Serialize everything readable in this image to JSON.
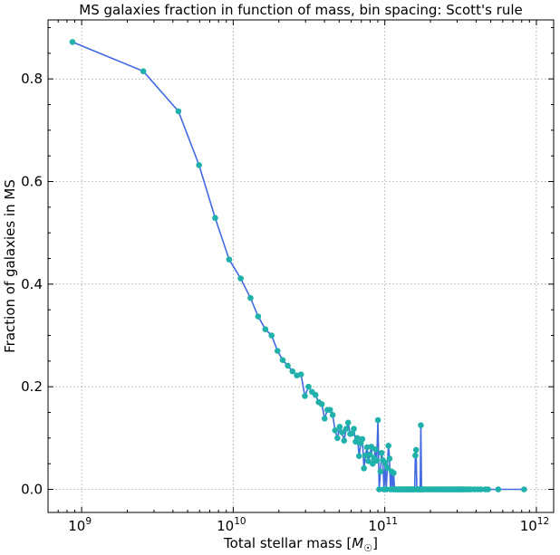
{
  "chart_data": {
    "type": "line",
    "title": "MS galaxies fraction in function of mass, bin spacing: Scott's rule",
    "xlabel": "Total stellar mass [M☉]",
    "ylabel": "Fraction of galaxies in MS",
    "xscale": "log",
    "xlim": [
      600000000.0,
      1300000000000.0
    ],
    "ylim": [
      -0.045,
      0.915
    ],
    "yticks": [
      0.0,
      0.2,
      0.4,
      0.6,
      0.8
    ],
    "ytick_labels": [
      "0.0",
      "0.2",
      "0.4",
      "0.6",
      "0.8"
    ],
    "xticks": [
      1000000000.0,
      10000000000.0,
      100000000000.0,
      1000000000000.0
    ],
    "xtick_labels": [
      {
        "base": "10",
        "exp": "9"
      },
      {
        "base": "10",
        "exp": "10"
      },
      {
        "base": "10",
        "exp": "11"
      },
      {
        "base": "10",
        "exp": "12"
      }
    ],
    "grid": true,
    "line_color": "#4169e1",
    "marker_color": "#20b2aa",
    "series": [
      {
        "x": [
          870000000.0,
          2550000000.0,
          4350000000.0,
          5950000000.0,
          7600000000.0,
          9400000000.0,
          11200000000.0,
          13000000000.0,
          14600000000.0,
          16300000000.0,
          17900000000.0,
          19600000000.0,
          21200000000.0,
          22900000000.0,
          24600000000.0,
          26300000000.0,
          28000000000.0,
          29700000000.0,
          31400000000.0,
          33100000000.0,
          34900000000.0,
          36600000000.0,
          38400000000.0,
          40100000000.0,
          41800000000.0,
          43500000000.0,
          45300000000.0,
          47000000000.0,
          48700000000.0,
          50400000000.0,
          52200000000.0,
          53900000000.0,
          55600000000.0,
          57300000000.0,
          59100000000.0,
          60800000000.0,
          62500000000.0,
          64200000000.0,
          66000000000.0,
          67700000000.0,
          69400000000.0,
          71100000000.0,
          72900000000.0,
          74600000000.0,
          76300000000.0,
          78000000000.0,
          79800000000.0,
          81500000000.0,
          83200000000.0,
          84900000000.0,
          86700000000.0,
          88400000000.0,
          90100000000.0,
          91800000000.0,
          93600000000.0,
          95300000000.0,
          97000000000.0,
          98700000000.0,
          100500000000.0,
          102200000000.0,
          103900000000.0,
          105700000000.0,
          107400000000.0,
          109100000000.0,
          110800000000.0,
          112600000000.0,
          114300000000.0,
          116000000000.0,
          117700000000.0,
          119500000000.0,
          121200000000.0,
          122900000000.0,
          124600000000.0,
          126400000000.0,
          128100000000.0,
          129800000000.0,
          131500000000.0,
          133300000000.0,
          135000000000.0,
          136700000000.0,
          138400000000.0,
          140200000000.0,
          141900000000.0,
          143600000000.0,
          145300000000.0,
          147100000000.0,
          148800000000.0,
          150500000000.0,
          152200000000.0,
          154000000000.0,
          155700000000.0,
          157400000000.0,
          159100000000.0,
          160900000000.0,
          162600000000.0,
          164300000000.0,
          166000000000.0,
          167800000000.0,
          169500000000.0,
          171200000000.0,
          172900000000.0,
          174700000000.0,
          176400000000.0,
          178100000000.0,
          180000000000.0,
          185000000000.0,
          190000000000.0,
          195000000000.0,
          200000000000.0,
          205000000000.0,
          210000000000.0,
          215000000000.0,
          220000000000.0,
          225000000000.0,
          230000000000.0,
          235000000000.0,
          240000000000.0,
          245000000000.0,
          250000000000.0,
          255000000000.0,
          260000000000.0,
          265000000000.0,
          270000000000.0,
          275000000000.0,
          280000000000.0,
          285000000000.0,
          290000000000.0,
          295000000000.0,
          300000000000.0,
          305000000000.0,
          310000000000.0,
          315000000000.0,
          320000000000.0,
          325000000000.0,
          330000000000.0,
          340000000000.0,
          350000000000.0,
          360000000000.0,
          370000000000.0,
          390000000000.0,
          410000000000.0,
          430000000000.0,
          460000000000.0,
          480000000000.0,
          560000000000.0,
          830000000000.0
        ],
        "y": [
          0.872,
          0.815,
          0.737,
          0.632,
          0.529,
          0.448,
          0.411,
          0.373,
          0.337,
          0.312,
          0.3,
          0.27,
          0.252,
          0.241,
          0.23,
          0.222,
          0.224,
          0.182,
          0.2,
          0.19,
          0.184,
          0.17,
          0.166,
          0.138,
          0.155,
          0.155,
          0.145,
          0.115,
          0.1,
          0.122,
          0.111,
          0.095,
          0.118,
          0.13,
          0.108,
          0.109,
          0.118,
          0.093,
          0.1,
          0.065,
          0.09,
          0.098,
          0.041,
          0.066,
          0.082,
          0.055,
          0.068,
          0.083,
          0.05,
          0.061,
          0.078,
          0.056,
          0.135,
          0.0,
          0.035,
          0.071,
          0.057,
          0.0,
          0.052,
          0.0,
          0.042,
          0.085,
          0.06,
          0.0,
          0.035,
          0.0,
          0.032,
          0.0,
          0.0,
          0.0,
          0.0,
          0.0,
          0.0,
          0.0,
          0.0,
          0.0,
          0.0,
          0.0,
          0.0,
          0.0,
          0.0,
          0.0,
          0.0,
          0.0,
          0.0,
          0.0,
          0.0,
          0.0,
          0.0,
          0.0,
          0.0,
          0.0,
          0.066,
          0.077,
          0.0,
          0.0,
          0.0,
          0.0,
          0.0,
          0.0,
          0.125,
          0.0,
          0.0,
          0.0,
          0.0,
          0.0,
          0.0,
          0.0,
          0.0,
          0.0,
          0.0,
          0.0,
          0.0,
          0.0,
          0.0,
          0.0,
          0.0,
          0.0,
          0.0,
          0.0,
          0.0,
          0.0,
          0.0,
          0.0,
          0.0,
          0.0,
          0.0,
          0.0,
          0.0,
          0.0,
          0.0,
          0.0,
          0.0,
          0.0,
          0.0,
          0.0,
          0.0,
          0.0,
          0.0,
          0.0,
          0.0,
          0.0,
          0.0,
          0.0,
          0.0,
          0.0
        ]
      }
    ]
  }
}
